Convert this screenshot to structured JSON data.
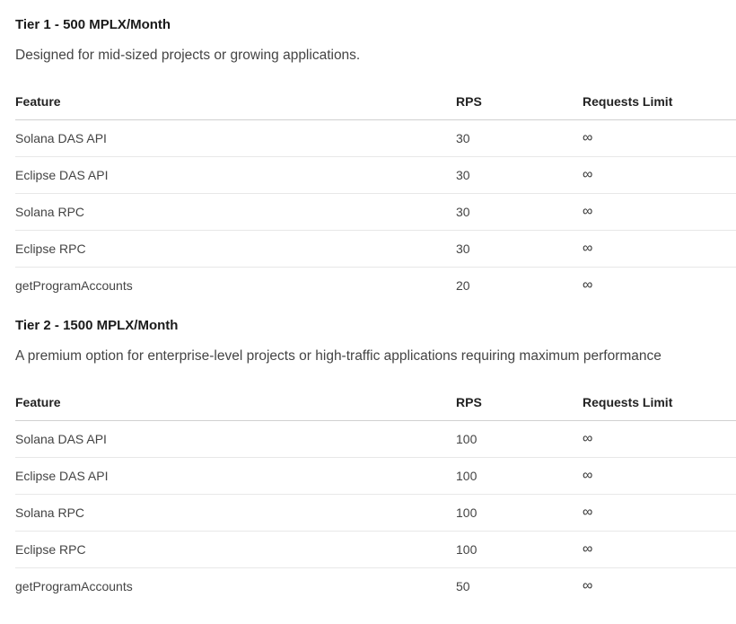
{
  "tiers": [
    {
      "title": "Tier 1 - 500 MPLX/Month",
      "description": "Designed for mid-sized projects or growing applications.",
      "columns": [
        "Feature",
        "RPS",
        "Requests Limit"
      ],
      "rows": [
        [
          "Solana DAS API",
          "30",
          "∞"
        ],
        [
          "Eclipse DAS API",
          "30",
          "∞"
        ],
        [
          "Solana RPC",
          "30",
          "∞"
        ],
        [
          "Eclipse RPC",
          "30",
          "∞"
        ],
        [
          "getProgramAccounts",
          "20",
          "∞"
        ]
      ]
    },
    {
      "title": "Tier 2 - 1500 MPLX/Month",
      "description": "A premium option for enterprise-level projects or high-traffic applications requiring maximum performance",
      "columns": [
        "Feature",
        "RPS",
        "Requests Limit"
      ],
      "rows": [
        [
          "Solana DAS API",
          "100",
          "∞"
        ],
        [
          "Eclipse DAS API",
          "100",
          "∞"
        ],
        [
          "Solana RPC",
          "100",
          "∞"
        ],
        [
          "Eclipse RPC",
          "100",
          "∞"
        ],
        [
          "getProgramAccounts",
          "50",
          "∞"
        ]
      ]
    }
  ]
}
